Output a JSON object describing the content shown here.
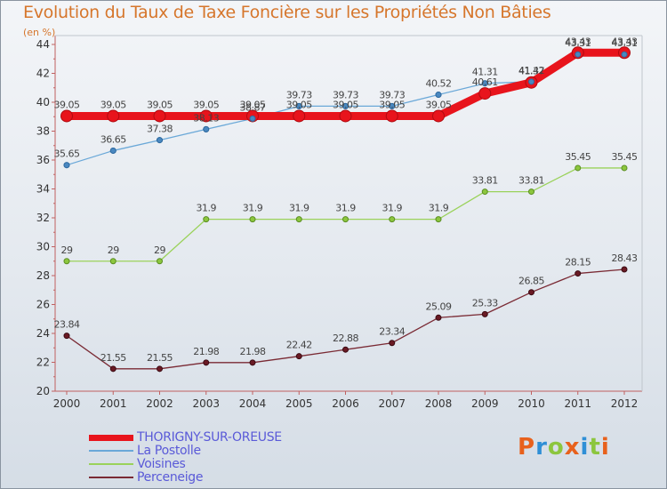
{
  "title": "Evolution du Taux de Taxe Foncière sur les Propriétés Non Bâties",
  "unit_label": "(en %)",
  "logo": {
    "text": "Proxiti",
    "colors": [
      "#e8611c",
      "#2f8fd6",
      "#8cc63e",
      "#e8611c",
      "#2f8fd6",
      "#8cc63e",
      "#e8611c"
    ]
  },
  "chart_data": {
    "type": "line",
    "ylim": [
      20,
      44
    ],
    "yticks": [
      20,
      22,
      24,
      26,
      28,
      30,
      32,
      34,
      36,
      38,
      40,
      42,
      44
    ],
    "x": [
      "2000",
      "2001",
      "2002",
      "2003",
      "2004",
      "2005",
      "2006",
      "2007",
      "2008",
      "2009",
      "2010",
      "2011",
      "2012"
    ],
    "grid": false,
    "legend_position": "bottom-left",
    "series": [
      {
        "name": "THORIGNY-SUR-OREUSE",
        "color": "#e8141c",
        "values": [
          39.05,
          39.05,
          39.05,
          39.05,
          39.05,
          39.05,
          39.05,
          39.05,
          39.05,
          40.61,
          41.37,
          43.43,
          43.43
        ],
        "labels": [
          "39.05",
          "39.05",
          "39.05",
          "39.05",
          "39.05",
          "39.05",
          "39.05",
          "39.05",
          "39.05",
          "40.61",
          "41.37",
          "43.43",
          "43.43"
        ]
      },
      {
        "name": "La Postolle",
        "color": "#6aa8d8",
        "values": [
          35.65,
          36.65,
          37.38,
          38.13,
          38.87,
          39.73,
          39.73,
          39.73,
          40.52,
          41.31,
          41.42,
          43.31,
          43.31
        ],
        "labels": [
          "35.65",
          "36.65",
          "37.38",
          "38.13",
          "38.87",
          "39.73",
          "39.73",
          "39.73",
          "40.52",
          "41.31",
          "41.42",
          "43.31",
          "43.31"
        ]
      },
      {
        "name": "Voisines",
        "color": "#9ad25a",
        "values": [
          29,
          29,
          29,
          31.9,
          31.9,
          31.9,
          31.9,
          31.9,
          31.9,
          33.81,
          33.81,
          35.45,
          35.45
        ],
        "labels": [
          "29",
          "29",
          "29",
          "31.9",
          "31.9",
          "31.9",
          "31.9",
          "31.9",
          "31.9",
          "33.81",
          "33.81",
          "35.45",
          "35.45"
        ]
      },
      {
        "name": "Perceneige",
        "color": "#7a2a34",
        "values": [
          23.84,
          21.55,
          21.55,
          21.98,
          21.98,
          22.42,
          22.88,
          23.34,
          25.09,
          25.33,
          26.85,
          28.15,
          28.43
        ],
        "labels": [
          "23.84",
          "21.55",
          "21.55",
          "21.98",
          "21.98",
          "22.42",
          "22.88",
          "23.34",
          "25.09",
          "25.33",
          "26.85",
          "28.15",
          "28.43"
        ]
      }
    ]
  }
}
